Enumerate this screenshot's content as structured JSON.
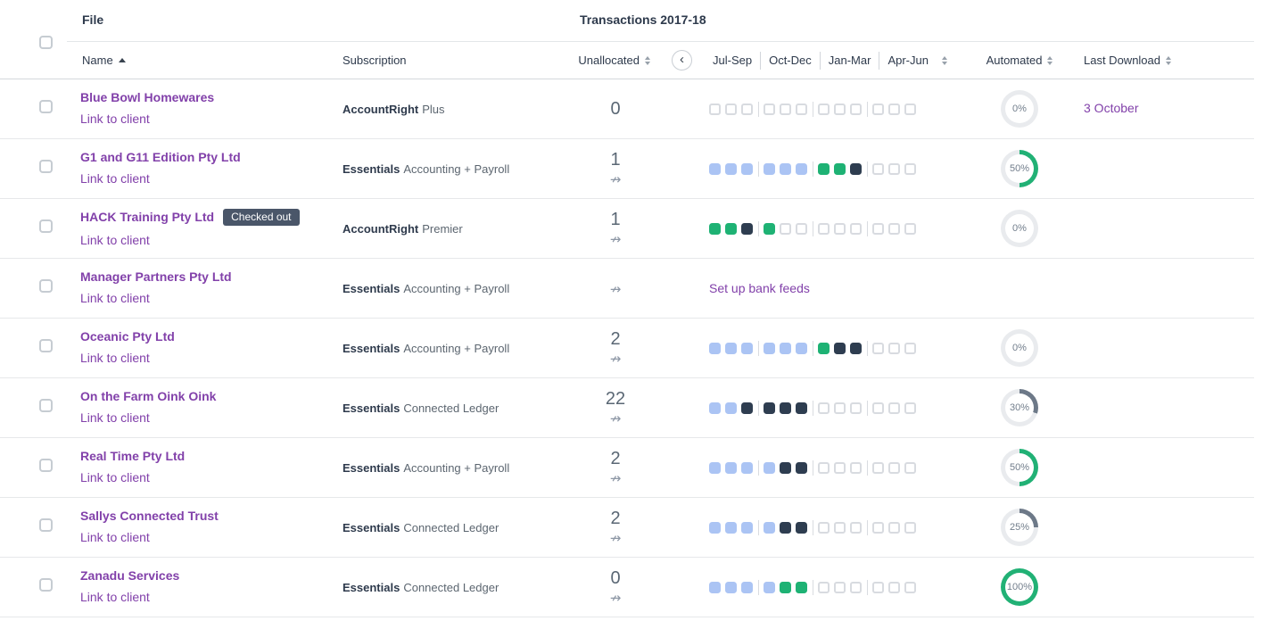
{
  "header": {
    "file_label": "File",
    "transactions_label": "Transactions 2017-18",
    "columns": {
      "name": "Name",
      "subscription": "Subscription",
      "unallocated": "Unallocated",
      "months": [
        "Jul-Sep",
        "Oct-Dec",
        "Jan-Mar",
        "Apr-Jun"
      ],
      "automated": "Automated",
      "last_download": "Last Download"
    }
  },
  "icons": {
    "back": "‹",
    "no_bank_feed": "↛"
  },
  "colors": {
    "accent_purple": "#8241aa",
    "square_blue": "#abc4f4",
    "square_green": "#1eb274",
    "square_dark": "#2e3d50",
    "donut_green": "#21b175",
    "donut_slate": "#6d7988",
    "donut_track": "#e9ebee",
    "badge_bg": "#4a5669"
  },
  "rows": [
    {
      "name": "Blue Bowl Homewares",
      "badge": "",
      "link": "Link to client",
      "subscription_bold": "AccountRight",
      "subscription_rest": "Plus",
      "unallocated": "0",
      "no_feed_icon": false,
      "months": [
        "e",
        "e",
        "e",
        "e",
        "e",
        "e",
        "e",
        "e",
        "e",
        "e",
        "e",
        "e"
      ],
      "bank_feeds_link": "",
      "automated_pct": 0,
      "automated_label": "0%",
      "last_download": "3 October"
    },
    {
      "name": "G1 and G11 Edition Pty Ltd",
      "badge": "",
      "link": "Link to client",
      "subscription_bold": "Essentials",
      "subscription_rest": "Accounting + Payroll",
      "unallocated": "1",
      "no_feed_icon": true,
      "months": [
        "b",
        "b",
        "b",
        "b",
        "b",
        "b",
        "g",
        "g",
        "d",
        "e",
        "e",
        "e"
      ],
      "bank_feeds_link": "",
      "automated_pct": 50,
      "automated_label": "50%",
      "last_download": ""
    },
    {
      "name": "HACK Training Pty Ltd",
      "badge": "Checked out",
      "link": "Link to client",
      "subscription_bold": "AccountRight",
      "subscription_rest": "Premier",
      "unallocated": "1",
      "no_feed_icon": true,
      "months": [
        "g",
        "g",
        "d",
        "g",
        "e",
        "e",
        "e",
        "e",
        "e",
        "e",
        "e",
        "e"
      ],
      "bank_feeds_link": "",
      "automated_pct": 0,
      "automated_label": "0%",
      "last_download": ""
    },
    {
      "name": "Manager Partners Pty Ltd",
      "badge": "",
      "link": "Link to client",
      "subscription_bold": "Essentials",
      "subscription_rest": "Accounting + Payroll",
      "unallocated": "",
      "no_feed_icon": true,
      "months": [],
      "bank_feeds_link": "Set up bank feeds",
      "automated_pct": 0,
      "automated_label": "",
      "last_download": ""
    },
    {
      "name": "Oceanic Pty Ltd",
      "badge": "",
      "link": "Link to client",
      "subscription_bold": "Essentials",
      "subscription_rest": "Accounting + Payroll",
      "unallocated": "2",
      "no_feed_icon": true,
      "months": [
        "b",
        "b",
        "b",
        "b",
        "b",
        "b",
        "g",
        "d",
        "d",
        "e",
        "e",
        "e"
      ],
      "bank_feeds_link": "",
      "automated_pct": 0,
      "automated_label": "0%",
      "last_download": ""
    },
    {
      "name": "On the Farm Oink Oink",
      "badge": "",
      "link": "Link to client",
      "subscription_bold": "Essentials",
      "subscription_rest": "Connected Ledger",
      "unallocated": "22",
      "no_feed_icon": true,
      "months": [
        "b",
        "b",
        "d",
        "d",
        "d",
        "d",
        "e",
        "e",
        "e",
        "e",
        "e",
        "e"
      ],
      "bank_feeds_link": "",
      "automated_pct": 30,
      "automated_label": "30%",
      "last_download": ""
    },
    {
      "name": "Real Time Pty Ltd",
      "badge": "",
      "link": "Link to client",
      "subscription_bold": "Essentials",
      "subscription_rest": "Accounting + Payroll",
      "unallocated": "2",
      "no_feed_icon": true,
      "months": [
        "b",
        "b",
        "b",
        "b",
        "d",
        "d",
        "e",
        "e",
        "e",
        "e",
        "e",
        "e"
      ],
      "bank_feeds_link": "",
      "automated_pct": 50,
      "automated_label": "50%",
      "last_download": ""
    },
    {
      "name": "Sallys Connected Trust",
      "badge": "",
      "link": "Link to client",
      "subscription_bold": "Essentials",
      "subscription_rest": "Connected Ledger",
      "unallocated": "2",
      "no_feed_icon": true,
      "months": [
        "b",
        "b",
        "b",
        "b",
        "d",
        "d",
        "e",
        "e",
        "e",
        "e",
        "e",
        "e"
      ],
      "bank_feeds_link": "",
      "automated_pct": 25,
      "automated_label": "25%",
      "last_download": ""
    },
    {
      "name": "Zanadu Services",
      "badge": "",
      "link": "Link to client",
      "subscription_bold": "Essentials",
      "subscription_rest": "Connected Ledger",
      "unallocated": "0",
      "no_feed_icon": true,
      "months": [
        "b",
        "b",
        "b",
        "b",
        "g",
        "g",
        "e",
        "e",
        "e",
        "e",
        "e",
        "e"
      ],
      "bank_feeds_link": "",
      "automated_pct": 100,
      "automated_label": "100%",
      "last_download": ""
    }
  ]
}
